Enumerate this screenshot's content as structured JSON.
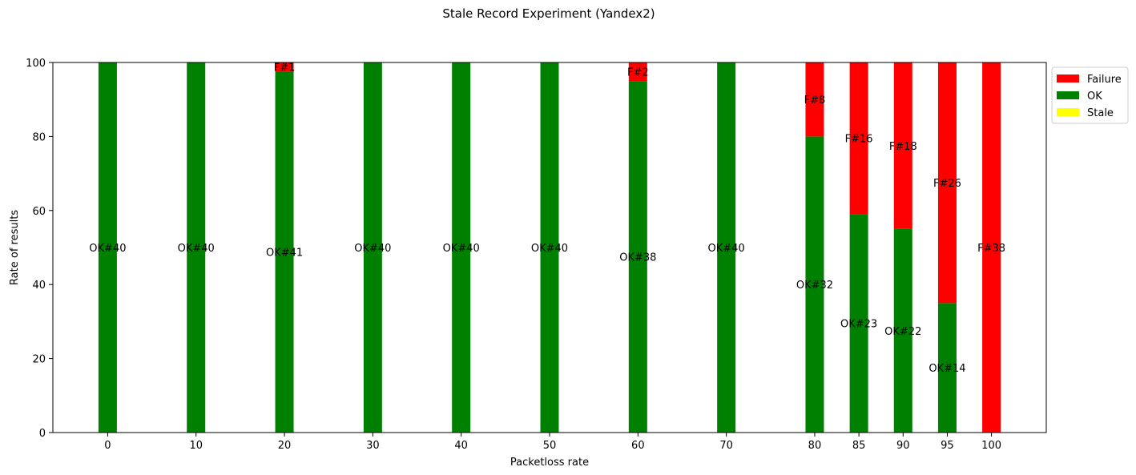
{
  "chart_data": {
    "type": "bar",
    "stacked": true,
    "title": "Stale Record Experiment (Yandex2)",
    "xlabel": "Packetloss rate",
    "ylabel": "Rate of results",
    "ylim": [
      0,
      100
    ],
    "yticks": [
      "0",
      "20",
      "40",
      "60",
      "80",
      "100"
    ],
    "categories": [
      "0",
      "10",
      "20",
      "30",
      "40",
      "50",
      "60",
      "70",
      "80",
      "85",
      "90",
      "95",
      "100"
    ],
    "x_positions": [
      0,
      10,
      20,
      30,
      40,
      50,
      60,
      70,
      80,
      85,
      90,
      95,
      100
    ],
    "x_range": [
      -6.2,
      106.2
    ],
    "series": [
      {
        "name": "OK",
        "color": "#008000",
        "values": [
          100,
          100,
          97.6,
          100,
          100,
          100,
          95,
          100,
          80,
          59,
          55,
          35,
          0
        ],
        "labels": [
          "OK#40",
          "OK#40",
          "OK#41",
          "OK#40",
          "OK#40",
          "OK#40",
          "OK#38",
          "OK#40",
          "OK#32",
          "OK#23",
          "OK#22",
          "OK#14",
          ""
        ]
      },
      {
        "name": "Failure",
        "color": "#ff0000",
        "values": [
          0,
          0,
          2.4,
          0,
          0,
          0,
          5,
          0,
          20,
          41,
          45,
          65,
          100
        ],
        "labels": [
          "",
          "",
          "F#1",
          "",
          "",
          "",
          "F#2",
          "",
          "F#8",
          "F#16",
          "F#18",
          "F#26",
          "F#38"
        ]
      },
      {
        "name": "Stale",
        "color": "#ffff00",
        "values": [
          0,
          0,
          0,
          0,
          0,
          0,
          0,
          0,
          0,
          0,
          0,
          0,
          0
        ],
        "labels": [
          "",
          "",
          "",
          "",
          "",
          "",
          "",
          "",
          "",
          "",
          "",
          "",
          ""
        ]
      }
    ],
    "legend": {
      "placement": "outside-top-right",
      "entries": [
        {
          "name": "Failure",
          "color": "#ff0000"
        },
        {
          "name": "OK",
          "color": "#008000"
        },
        {
          "name": "Stale",
          "color": "#ffff00"
        }
      ]
    },
    "grid": false
  }
}
